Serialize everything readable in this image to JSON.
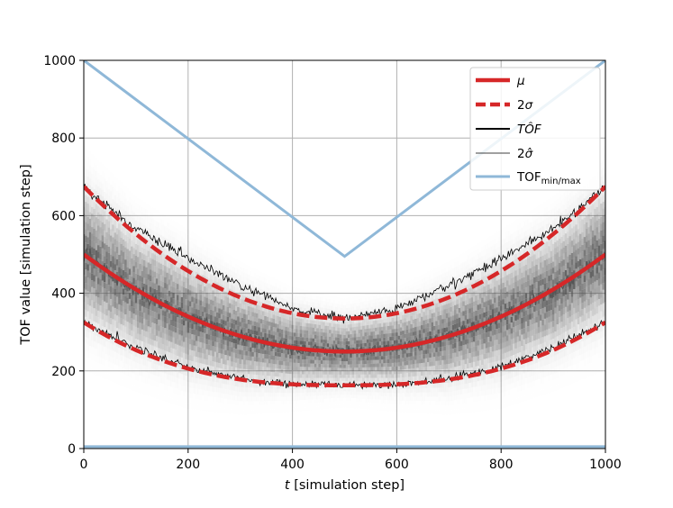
{
  "chart_data": {
    "type": "line",
    "title": "",
    "xlabel_var": "t",
    "xlabel_rest": " [simulation step]",
    "ylabel": "TOF value [simulation step]",
    "xlim": [
      0,
      1000
    ],
    "ylim": [
      0,
      1000
    ],
    "xticks": [
      0,
      200,
      400,
      600,
      800,
      1000
    ],
    "yticks": [
      0,
      200,
      400,
      600,
      800,
      1000
    ],
    "xtick_labels": [
      "0",
      "200",
      "400",
      "600",
      "800",
      "1000"
    ],
    "ytick_labels": [
      "0",
      "200",
      "400",
      "600",
      "800",
      "1000"
    ],
    "grid": true,
    "legend_position": "top-right",
    "series": [
      {
        "name": "mu",
        "label": "μ",
        "color": "#d62728",
        "style": "solid",
        "x": [
          0,
          100,
          200,
          300,
          400,
          500,
          600,
          700,
          800,
          900,
          1000
        ],
        "y": [
          500,
          405,
          340,
          290,
          260,
          250,
          260,
          290,
          340,
          405,
          500
        ]
      },
      {
        "name": "two-sigma-upper",
        "label": "2σ",
        "color": "#d62728",
        "style": "dashed",
        "x": [
          0,
          100,
          200,
          300,
          400,
          500,
          600,
          700,
          800,
          900,
          1000
        ],
        "y": [
          675,
          565,
          490,
          420,
          360,
          335,
          360,
          420,
          490,
          565,
          675
        ]
      },
      {
        "name": "two-sigma-lower",
        "label": "",
        "color": "#d62728",
        "style": "dashed",
        "x": [
          0,
          100,
          200,
          300,
          400,
          500,
          600,
          700,
          800,
          900,
          1000
        ],
        "y": [
          325,
          260,
          210,
          180,
          165,
          165,
          165,
          180,
          210,
          260,
          325
        ]
      },
      {
        "name": "tof-hat",
        "label": "TÔF",
        "color": "#000000",
        "style": "noisy"
      },
      {
        "name": "two-sigma-hat",
        "label": "2σ̂",
        "color": "#000000",
        "style": "thin"
      },
      {
        "name": "tof-min-max",
        "label_main": "TOF",
        "label_sub": "min/max",
        "color": "#8fb8d8",
        "style": "solid",
        "x": [
          0,
          500,
          1000
        ],
        "y": [
          1000,
          495,
          1000
        ],
        "baseline_y": 5
      }
    ],
    "legend": [
      {
        "label": "μ",
        "italic": true,
        "color": "#d62728",
        "style": "thick"
      },
      {
        "label_prefix": "2",
        "label_var": "σ",
        "color": "#d62728",
        "style": "dashed"
      },
      {
        "label": "TÔF",
        "italic": true,
        "color": "#000000",
        "style": "medium"
      },
      {
        "label_prefix": "2",
        "label_var": "σ̂",
        "color": "#000000",
        "style": "thin"
      },
      {
        "label": "TOF",
        "label_sub": "min/max",
        "color": "#8fb8d8",
        "style": "line"
      }
    ]
  }
}
